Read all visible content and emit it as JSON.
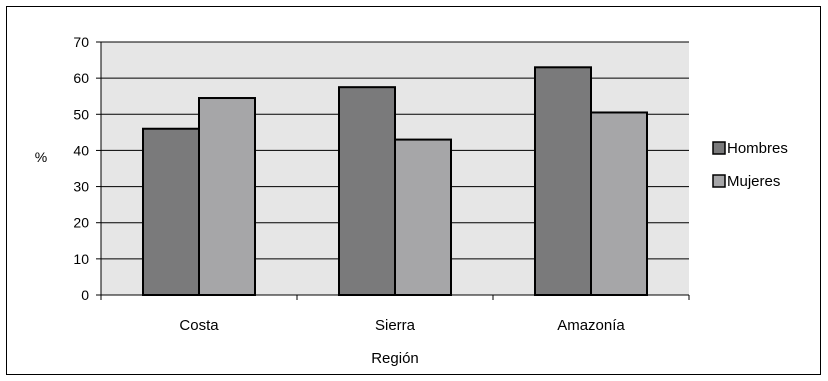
{
  "chart_data": {
    "type": "bar",
    "title": "",
    "xlabel": "Región",
    "ylabel": "%",
    "categories": [
      "Costa",
      "Sierra",
      "Amazonía"
    ],
    "series": [
      {
        "name": "Hombres",
        "values": [
          46,
          57.5,
          63
        ],
        "color": "#7a7a7b"
      },
      {
        "name": "Mujeres",
        "values": [
          54.5,
          43,
          50.5
        ],
        "color": "#a6a6a8"
      }
    ],
    "ylim": [
      0,
      70
    ],
    "yticks": [
      0,
      10,
      20,
      30,
      40,
      50,
      60,
      70
    ],
    "grid": true,
    "legend": "right",
    "plot_background": "#e6e6e6"
  }
}
